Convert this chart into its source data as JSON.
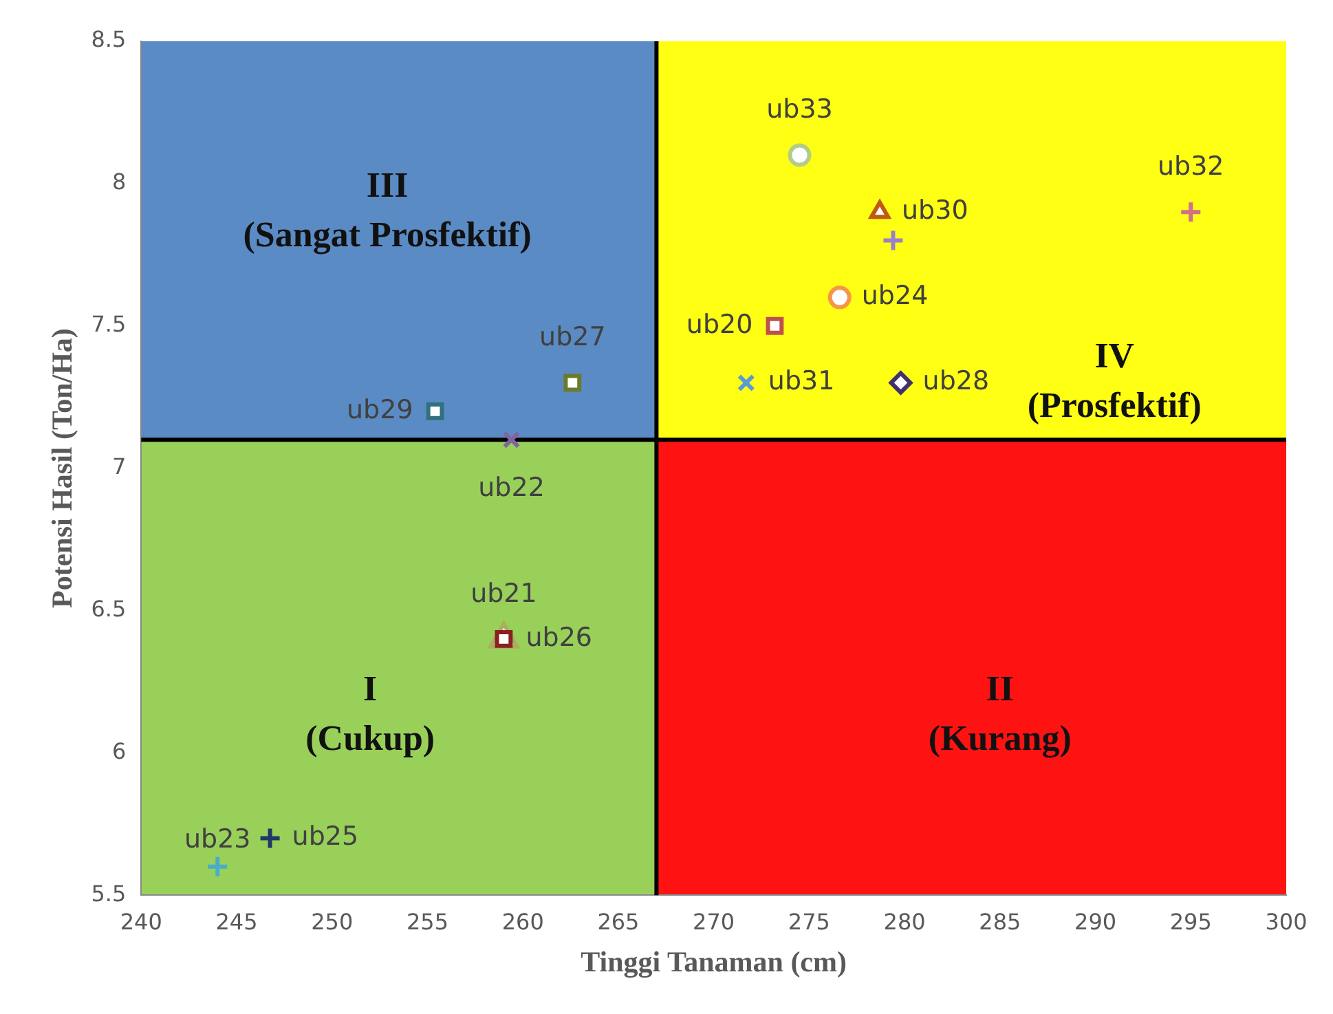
{
  "chart_data": {
    "type": "scatter",
    "xlabel": "Tinggi Tanaman (cm)",
    "ylabel": "Potensi Hasil (Ton/Ha)",
    "xlim": [
      240,
      300
    ],
    "xticks": [
      240,
      245,
      250,
      255,
      260,
      265,
      270,
      275,
      280,
      285,
      290,
      295,
      300
    ],
    "ylim": [
      5.5,
      8.5
    ],
    "yticks": [
      5.5,
      6,
      6.5,
      7,
      7.5,
      8,
      8.5
    ],
    "grid": false,
    "legend": false,
    "ref_lines": [
      {
        "axis": "x",
        "value": 267,
        "color": "#000000"
      },
      {
        "axis": "y",
        "value": 7.1,
        "color": "#000000"
      }
    ],
    "annotations": [
      "III\n(Sangat Prosfektif)",
      "IV\n(Prosfektif)",
      "I\n(Cukup)",
      "II\n(Kurang)"
    ],
    "series": [
      {
        "name": "ub33",
        "color": "#b3cc8a",
        "x": [
          274.5
        ],
        "values": [
          8.1
        ],
        "marker": "circle"
      },
      {
        "name": "ub30",
        "color": "#c05a10",
        "x": [
          278.7
        ],
        "values": [
          7.9
        ],
        "marker": "triangle"
      },
      {
        "color": "#9a80c8",
        "x": [
          279.4
        ],
        "values": [
          7.8
        ],
        "marker": "cross"
      },
      {
        "name": "ub32",
        "color": "#d0708a",
        "x": [
          295
        ],
        "values": [
          7.9
        ],
        "marker": "cross"
      },
      {
        "name": "ub24",
        "color": "#f79646",
        "x": [
          276.6
        ],
        "values": [
          7.6
        ],
        "marker": "circle"
      },
      {
        "name": "ub20",
        "color": "#c0504d",
        "x": [
          273.2
        ],
        "values": [
          7.5
        ],
        "marker": "square"
      },
      {
        "name": "ub31",
        "color": "#5b9bd5",
        "x": [
          271.7
        ],
        "values": [
          7.3
        ],
        "marker": "x"
      },
      {
        "name": "ub28",
        "color": "#403070",
        "x": [
          279.8
        ],
        "values": [
          7.3
        ],
        "marker": "diamond"
      },
      {
        "name": "ub29",
        "color": "#31707f",
        "x": [
          255.4
        ],
        "values": [
          7.2
        ],
        "marker": "square"
      },
      {
        "name": "ub27",
        "color": "#6b7b2a",
        "x": [
          262.6
        ],
        "values": [
          7.3
        ],
        "marker": "square"
      },
      {
        "name": "ub22",
        "color": "#8064a2",
        "x": [
          259.4
        ],
        "values": [
          7.1
        ],
        "marker": "x"
      },
      {
        "name": "ub21",
        "color": "#a8b060",
        "x": [
          259
        ],
        "values": [
          6.4
        ],
        "marker": "triangle"
      },
      {
        "name": "ub26",
        "color": "#8b2020",
        "x": [
          259
        ],
        "values": [
          6.4
        ],
        "marker": "square"
      },
      {
        "name": "ub23",
        "color": "#4bacc6",
        "x": [
          244
        ],
        "values": [
          5.6
        ],
        "marker": "cross"
      },
      {
        "name": "ub25",
        "color": "#1f3864",
        "x": [
          246.75
        ],
        "values": [
          5.7
        ],
        "marker": "cross"
      }
    ]
  }
}
